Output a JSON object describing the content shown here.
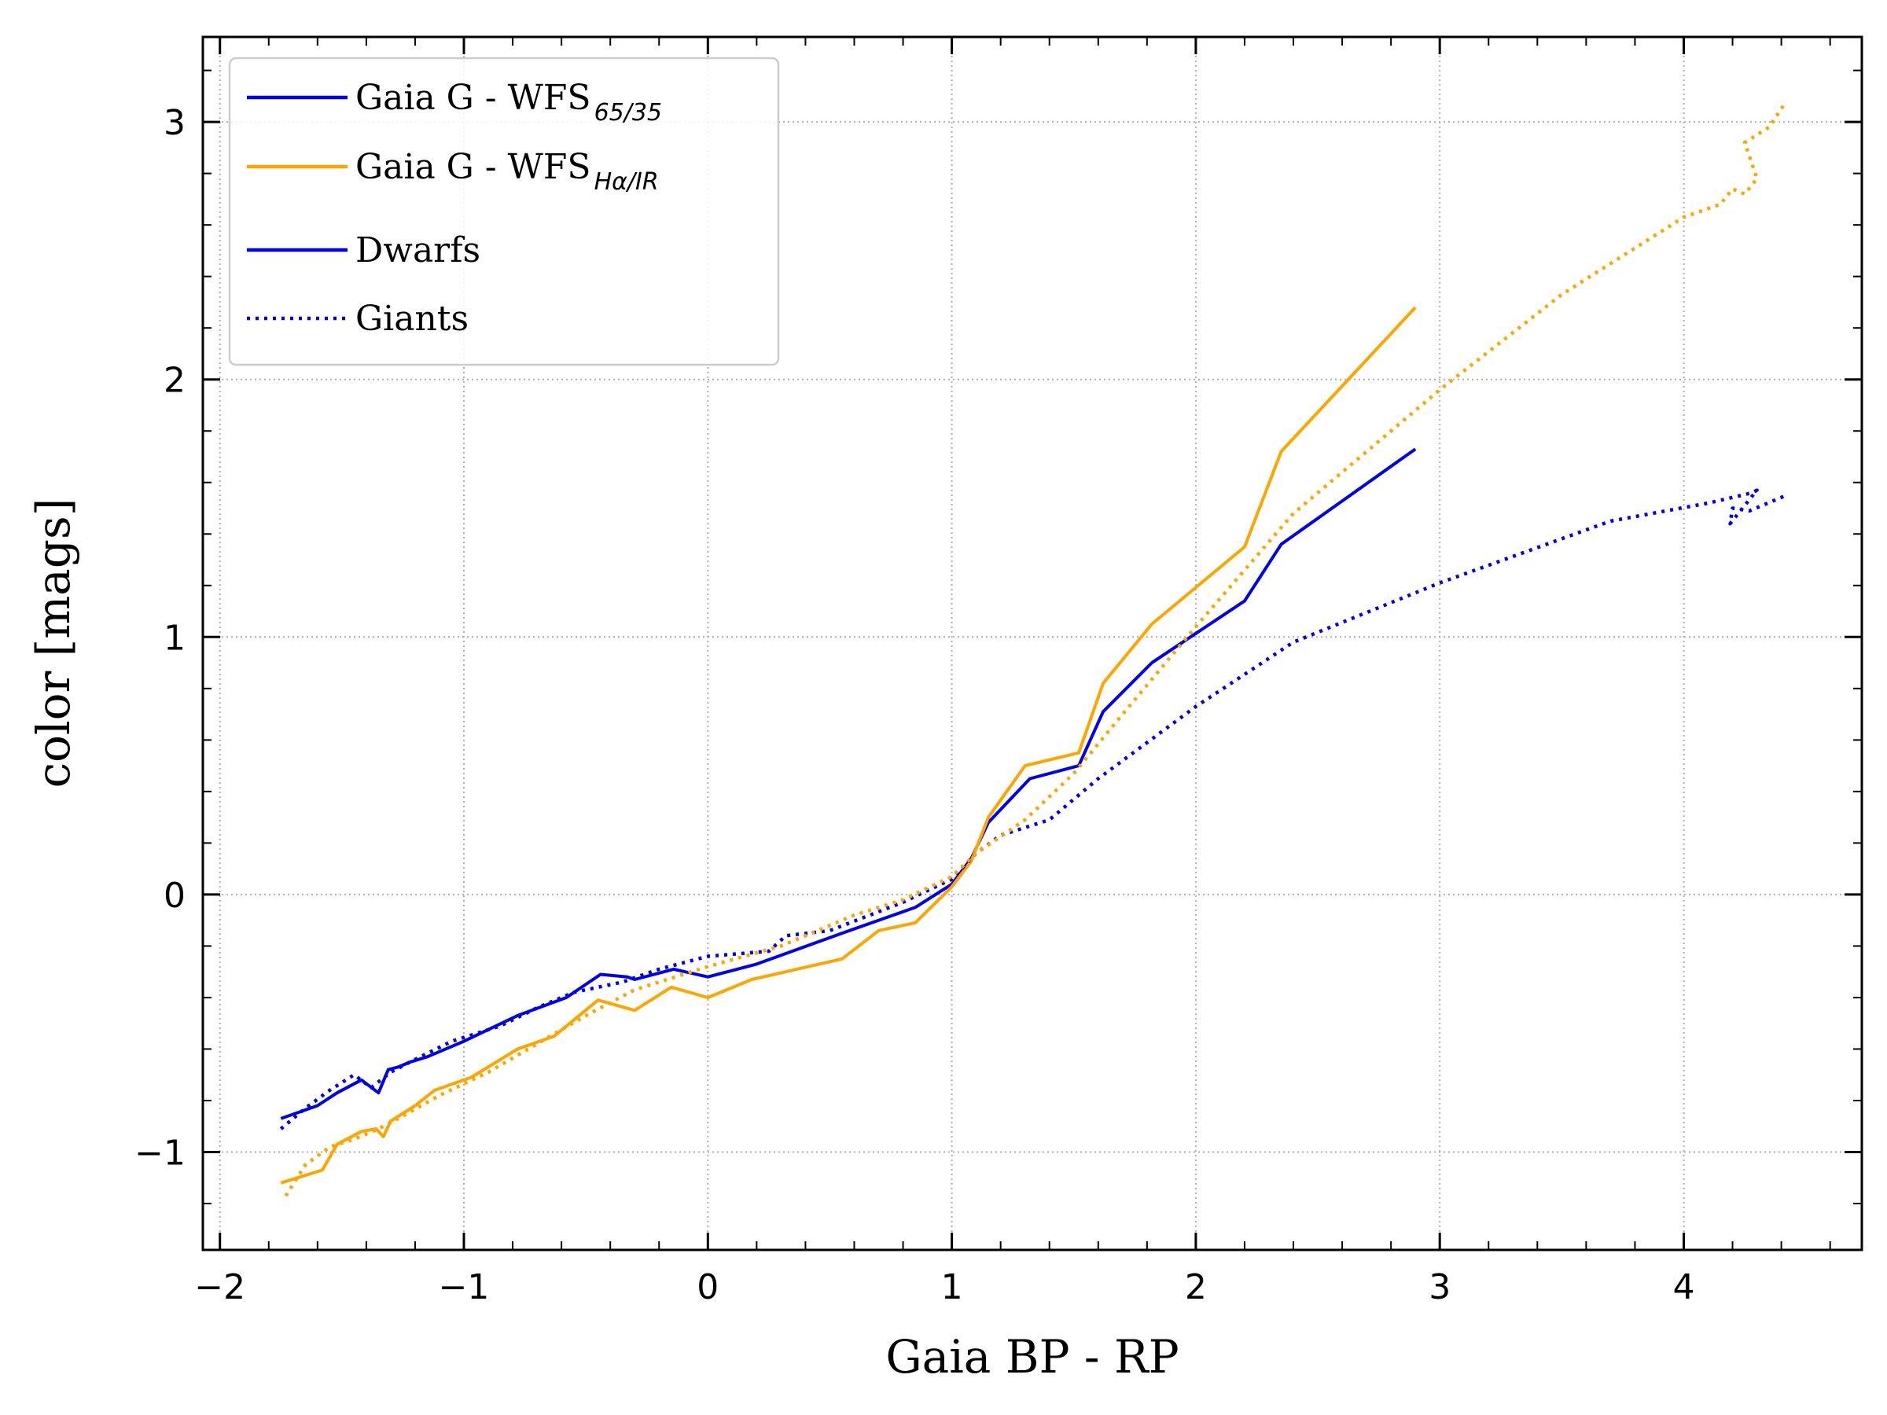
{
  "chart_data": {
    "type": "line",
    "xlabel": "Gaia BP - RP",
    "ylabel": "color [mags]",
    "xlim": [
      -2.07,
      4.73
    ],
    "ylim": [
      -1.38,
      3.33
    ],
    "xticks": [
      -2,
      -1,
      0,
      1,
      2,
      3,
      4
    ],
    "yticks": [
      -1,
      0,
      1,
      2,
      3
    ],
    "xtick_labels": [
      "−2",
      "−1",
      "0",
      "1",
      "2",
      "3",
      "4"
    ],
    "ytick_labels": [
      "−1",
      "0",
      "1",
      "2",
      "3"
    ],
    "grid": true,
    "legend_position": "top-left",
    "legend": [
      {
        "label": "Gaia G - WFS",
        "sub": "65/35",
        "color": "#0000ee",
        "dash": "solid"
      },
      {
        "label": "Gaia G - WFS",
        "sub": "Hα/IR",
        "color": "#ffa500",
        "dash": "solid"
      },
      {
        "label": "Dwarfs",
        "sub": "",
        "color": "#0000ee",
        "dash": "solid"
      },
      {
        "label": "Giants",
        "sub": "",
        "color": "#0000ee",
        "dash": "dotted"
      }
    ],
    "series": [
      {
        "color": "#0000ee",
        "dash": "solid",
        "x": [
          -1.75,
          -1.6,
          -1.52,
          -1.42,
          -1.35,
          -1.31,
          -1.27,
          -1.22,
          -1.15,
          -1.0,
          -0.78,
          -0.58,
          -0.44,
          -0.33,
          -0.3,
          -0.14,
          0.0,
          0.2,
          0.55,
          0.85,
          1.0,
          1.08,
          1.15,
          1.32,
          1.52,
          1.62,
          1.82,
          2.2,
          2.35,
          2.9
        ],
        "y": [
          -0.87,
          -0.82,
          -0.77,
          -0.72,
          -0.77,
          -0.68,
          -0.67,
          -0.65,
          -0.63,
          -0.57,
          -0.47,
          -0.4,
          -0.31,
          -0.32,
          -0.33,
          -0.29,
          -0.32,
          -0.27,
          -0.15,
          -0.05,
          0.04,
          0.14,
          0.28,
          0.45,
          0.5,
          0.71,
          0.9,
          1.14,
          1.36,
          1.73
        ]
      },
      {
        "color": "#ffa500",
        "dash": "solid",
        "x": [
          -1.75,
          -1.58,
          -1.52,
          -1.42,
          -1.36,
          -1.33,
          -1.3,
          -1.2,
          -1.12,
          -0.97,
          -0.78,
          -0.63,
          -0.45,
          -0.3,
          -0.15,
          0.0,
          0.18,
          0.55,
          0.7,
          0.85,
          1.0,
          1.08,
          1.15,
          1.3,
          1.52,
          1.62,
          1.82,
          2.2,
          2.35,
          2.9
        ],
        "y": [
          -1.12,
          -1.07,
          -0.97,
          -0.92,
          -0.91,
          -0.94,
          -0.88,
          -0.82,
          -0.76,
          -0.71,
          -0.6,
          -0.55,
          -0.41,
          -0.45,
          -0.36,
          -0.4,
          -0.33,
          -0.25,
          -0.14,
          -0.11,
          0.03,
          0.13,
          0.3,
          0.5,
          0.55,
          0.82,
          1.05,
          1.35,
          1.72,
          2.28
        ]
      },
      {
        "color": "#0000ee",
        "dash": "dotted",
        "x": [
          -1.75,
          -1.65,
          -1.55,
          -1.45,
          -1.38,
          -1.3,
          -1.2,
          -1.05,
          -0.85,
          -0.7,
          -0.55,
          -0.35,
          -0.2,
          0.0,
          0.25,
          0.32,
          0.5,
          0.8,
          1.0,
          1.1,
          1.2,
          1.4,
          1.6,
          2.0,
          2.4,
          3.0,
          3.7,
          4.1,
          4.28,
          4.3,
          4.19,
          4.2,
          4.27,
          4.42
        ],
        "y": [
          -0.91,
          -0.83,
          -0.76,
          -0.7,
          -0.75,
          -0.69,
          -0.64,
          -0.57,
          -0.51,
          -0.44,
          -0.38,
          -0.34,
          -0.29,
          -0.24,
          -0.22,
          -0.16,
          -0.14,
          -0.03,
          0.06,
          0.16,
          0.23,
          0.29,
          0.45,
          0.73,
          0.98,
          1.21,
          1.45,
          1.52,
          1.56,
          1.57,
          1.44,
          1.5,
          1.49,
          1.55
        ]
      },
      {
        "color": "#ffa500",
        "dash": "dotted",
        "x": [
          -1.73,
          -1.65,
          -1.55,
          -1.45,
          -1.35,
          -1.25,
          -1.1,
          -0.9,
          -0.7,
          -0.5,
          -0.3,
          0.0,
          0.3,
          0.6,
          0.8,
          1.0,
          1.1,
          1.3,
          1.5,
          1.7,
          2.0,
          2.4,
          3.0,
          3.5,
          4.0,
          4.15,
          4.2,
          4.25,
          4.3,
          4.25,
          4.35,
          4.42
        ],
        "y": [
          -1.17,
          -1.05,
          -0.98,
          -0.95,
          -0.91,
          -0.86,
          -0.78,
          -0.69,
          -0.58,
          -0.47,
          -0.37,
          -0.28,
          -0.2,
          -0.08,
          -0.02,
          0.07,
          0.16,
          0.29,
          0.47,
          0.7,
          1.04,
          1.48,
          1.96,
          2.33,
          2.63,
          2.68,
          2.74,
          2.72,
          2.78,
          2.92,
          2.98,
          3.08
        ]
      }
    ]
  }
}
